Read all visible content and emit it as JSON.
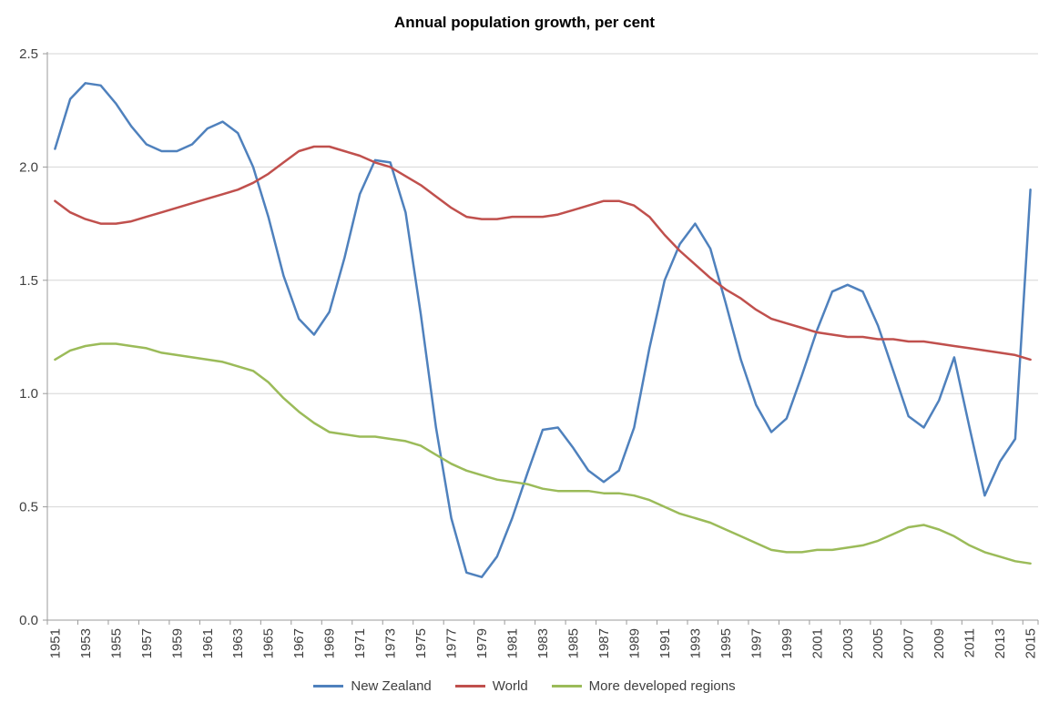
{
  "colors": {
    "background": "#ffffff",
    "gridline": "#d6d6d6",
    "axis": "#9b9b9b",
    "text": "#3f3f3f",
    "title": "#000000",
    "series_blue": "#4f81bd",
    "series_red": "#c0504d",
    "series_green": "#9bbb59"
  },
  "chart_data": {
    "type": "line",
    "title": "Annual population growth, per cent",
    "xlabel": "",
    "ylabel": "",
    "ylim": [
      0,
      2.5
    ],
    "grid": true,
    "legend_position": "bottom",
    "y_ticks": [
      0,
      0.5,
      1.0,
      1.5,
      2.0,
      2.5
    ],
    "y_tick_labels": [
      "0.0",
      "0.5",
      "1.0",
      "1.5",
      "2.0",
      "2.5"
    ],
    "x_start": 1951,
    "x_end": 2015,
    "x_tick_labels": [
      "1951",
      "1953",
      "1955",
      "1957",
      "1959",
      "1961",
      "1963",
      "1965",
      "1967",
      "1969",
      "1971",
      "1973",
      "1975",
      "1977",
      "1979",
      "1981",
      "1983",
      "1985",
      "1987",
      "1989",
      "1991",
      "1993",
      "1995",
      "1997",
      "1999",
      "2001",
      "2003",
      "2005",
      "2007",
      "2009",
      "2011",
      "2013",
      "2015"
    ],
    "series": [
      {
        "name": "New Zealand",
        "color": "#4f81bd",
        "values": [
          2.08,
          2.3,
          2.37,
          2.36,
          2.28,
          2.18,
          2.1,
          2.07,
          2.07,
          2.1,
          2.17,
          2.2,
          2.15,
          2.0,
          1.78,
          1.52,
          1.33,
          1.26,
          1.36,
          1.6,
          1.88,
          2.03,
          2.02,
          1.8,
          1.35,
          0.85,
          0.45,
          0.21,
          0.19,
          0.28,
          0.45,
          0.65,
          0.84,
          0.85,
          0.76,
          0.66,
          0.61,
          0.66,
          0.85,
          1.2,
          1.5,
          1.66,
          1.75,
          1.64,
          1.4,
          1.15,
          0.95,
          0.83,
          0.89,
          1.08,
          1.28,
          1.45,
          1.48,
          1.45,
          1.3,
          1.1,
          0.9,
          0.85,
          0.97,
          1.16,
          0.85,
          0.55,
          0.7,
          0.8,
          1.9
        ]
      },
      {
        "name": "World",
        "color": "#c0504d",
        "values": [
          1.85,
          1.8,
          1.77,
          1.75,
          1.75,
          1.76,
          1.78,
          1.8,
          1.82,
          1.84,
          1.86,
          1.88,
          1.9,
          1.93,
          1.97,
          2.02,
          2.07,
          2.09,
          2.09,
          2.07,
          2.05,
          2.02,
          2.0,
          1.96,
          1.92,
          1.87,
          1.82,
          1.78,
          1.77,
          1.77,
          1.78,
          1.78,
          1.78,
          1.79,
          1.81,
          1.83,
          1.85,
          1.85,
          1.83,
          1.78,
          1.7,
          1.63,
          1.57,
          1.51,
          1.46,
          1.42,
          1.37,
          1.33,
          1.31,
          1.29,
          1.27,
          1.26,
          1.25,
          1.25,
          1.24,
          1.24,
          1.23,
          1.23,
          1.22,
          1.21,
          1.2,
          1.19,
          1.18,
          1.17,
          1.15
        ]
      },
      {
        "name": "More developed regions",
        "color": "#9bbb59",
        "values": [
          1.15,
          1.19,
          1.21,
          1.22,
          1.22,
          1.21,
          1.2,
          1.18,
          1.17,
          1.16,
          1.15,
          1.14,
          1.12,
          1.1,
          1.05,
          0.98,
          0.92,
          0.87,
          0.83,
          0.82,
          0.81,
          0.81,
          0.8,
          0.79,
          0.77,
          0.73,
          0.69,
          0.66,
          0.64,
          0.62,
          0.61,
          0.6,
          0.58,
          0.57,
          0.57,
          0.57,
          0.56,
          0.56,
          0.55,
          0.53,
          0.5,
          0.47,
          0.45,
          0.43,
          0.4,
          0.37,
          0.34,
          0.31,
          0.3,
          0.3,
          0.31,
          0.31,
          0.32,
          0.33,
          0.35,
          0.38,
          0.41,
          0.42,
          0.4,
          0.37,
          0.33,
          0.3,
          0.28,
          0.26,
          0.25
        ]
      }
    ]
  }
}
